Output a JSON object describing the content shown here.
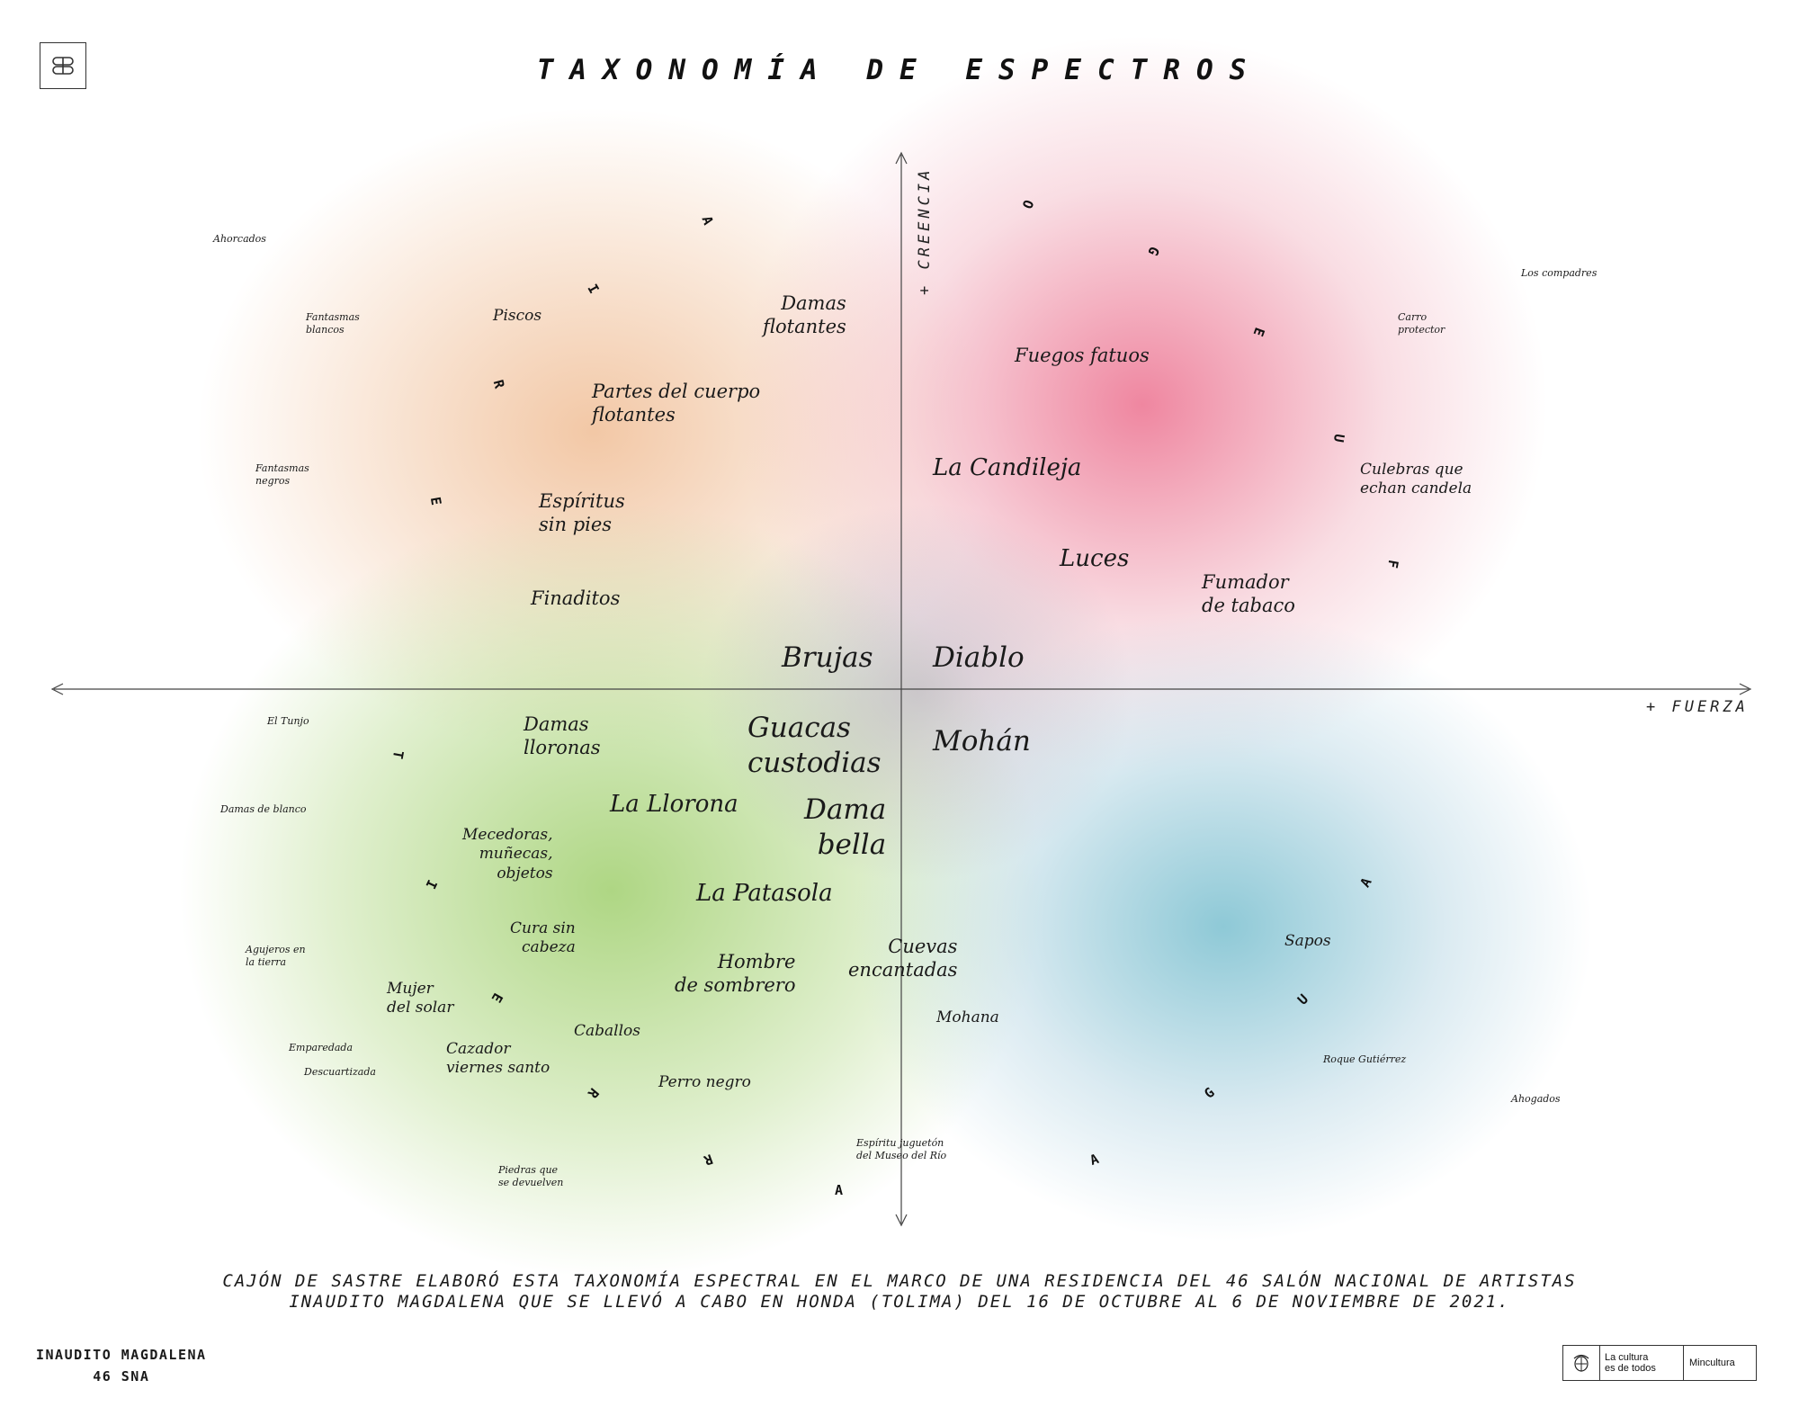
{
  "title": "TAXONOMÍA DE ESPECTROS",
  "axes": {
    "y_label": "+ CREENCIA",
    "x_label": "+ FUERZA"
  },
  "element_words": [
    {
      "word": "AIRE",
      "letters": [
        "A",
        "I",
        "R",
        "E"
      ]
    },
    {
      "word": "FUEGO",
      "letters": [
        "O",
        "G",
        "E",
        "U",
        "F"
      ]
    },
    {
      "word": "TIERRA",
      "letters": [
        "T",
        "I",
        "E",
        "R",
        "R",
        "A"
      ]
    },
    {
      "word": "AGUA",
      "letters": [
        "A",
        "U",
        "G",
        "A"
      ]
    }
  ],
  "labels": [
    {
      "id": "ahorcados",
      "text": "Ahorcados"
    },
    {
      "id": "fantasmas-blancos",
      "text": "Fantasmas\nblancos"
    },
    {
      "id": "piscos",
      "text": "Piscos"
    },
    {
      "id": "damas-flotantes",
      "text": "Damas\nflotantes"
    },
    {
      "id": "partes-cuerpo",
      "text": "Partes del cuerpo\nflotantes"
    },
    {
      "id": "fantasmas-negros",
      "text": "Fantasmas\nnegros"
    },
    {
      "id": "espiritus-sin-pies",
      "text": "Espíritus\nsin pies"
    },
    {
      "id": "finaditos",
      "text": "Finaditos"
    },
    {
      "id": "brujas",
      "text": "Brujas"
    },
    {
      "id": "los-compadres",
      "text": "Los compadres"
    },
    {
      "id": "carro-protector",
      "text": "Carro\nprotector"
    },
    {
      "id": "fuegos-fatuos",
      "text": "Fuegos fatuos"
    },
    {
      "id": "la-candileja",
      "text": "La Candileja"
    },
    {
      "id": "culebras",
      "text": "Culebras que\nechan candela"
    },
    {
      "id": "luces",
      "text": "Luces"
    },
    {
      "id": "fumador",
      "text": "Fumador\nde tabaco"
    },
    {
      "id": "diablo",
      "text": "Diablo"
    },
    {
      "id": "el-tunjo",
      "text": "El Tunjo"
    },
    {
      "id": "damas-lloronas",
      "text": "Damas\nlloronas"
    },
    {
      "id": "guacas",
      "text": "Guacas\ncustodias"
    },
    {
      "id": "mohan",
      "text": "Mohán"
    },
    {
      "id": "damas-de-blanco",
      "text": "Damas de blanco"
    },
    {
      "id": "la-llorona",
      "text": "La Llorona"
    },
    {
      "id": "dama-bella",
      "text": "Dama\nbella"
    },
    {
      "id": "mecedoras",
      "text": "Mecedoras,\nmuñecas,\nobjetos"
    },
    {
      "id": "la-patasola",
      "text": "La Patasola"
    },
    {
      "id": "cura-sin-cabeza",
      "text": "Cura sin\ncabeza"
    },
    {
      "id": "agujeros",
      "text": "Agujeros en\nla tierra"
    },
    {
      "id": "hombre-sombrero",
      "text": "Hombre\nde sombrero"
    },
    {
      "id": "cuevas",
      "text": "Cuevas\nencantadas"
    },
    {
      "id": "mujer-solar",
      "text": "Mujer\ndel solar"
    },
    {
      "id": "mohana",
      "text": "Mohana"
    },
    {
      "id": "sapos",
      "text": "Sapos"
    },
    {
      "id": "caballos",
      "text": "Caballos"
    },
    {
      "id": "emparedada",
      "text": "Emparedada"
    },
    {
      "id": "descuartizada",
      "text": "Descuartizada"
    },
    {
      "id": "cazador",
      "text": "Cazador\nviernes santo"
    },
    {
      "id": "roque",
      "text": "Roque Gutiérrez"
    },
    {
      "id": "perro-negro",
      "text": "Perro negro"
    },
    {
      "id": "ahogados",
      "text": "Ahogados"
    },
    {
      "id": "espiritu-jugueton",
      "text": "Espíritu juguetón\ndel Museo del Río"
    },
    {
      "id": "piedras",
      "text": "Piedras que\nse devuelven"
    }
  ],
  "footnote": {
    "line1": "CAJÓN DE SASTRE ELABORÓ ESTA TAXONOMÍA ESPECTRAL EN EL MARCO DE UNA RESIDENCIA DEL 46 SALÓN NACIONAL DE ARTISTAS",
    "line2": "INAUDITO MAGDALENA QUE SE LLEVÓ A CABO EN HONDA (TOLIMA) DEL 16 DE OCTUBRE AL 6 DE NOVIEMBRE DE 2021."
  },
  "brand": {
    "line1": "INAUDITO MAGDALENA",
    "line2": "46 SNA"
  },
  "sponsor": {
    "slogan": "La cultura\nes de todos",
    "name": "Mincultura"
  },
  "icons": {
    "logo": "infinity-knot-icon",
    "seal": "colombia-seal-icon"
  },
  "colors": {
    "air": "#f2c9a4",
    "fire": "#ee8aa0",
    "earth": "#b8d98e",
    "water": "#8ec6d6"
  }
}
